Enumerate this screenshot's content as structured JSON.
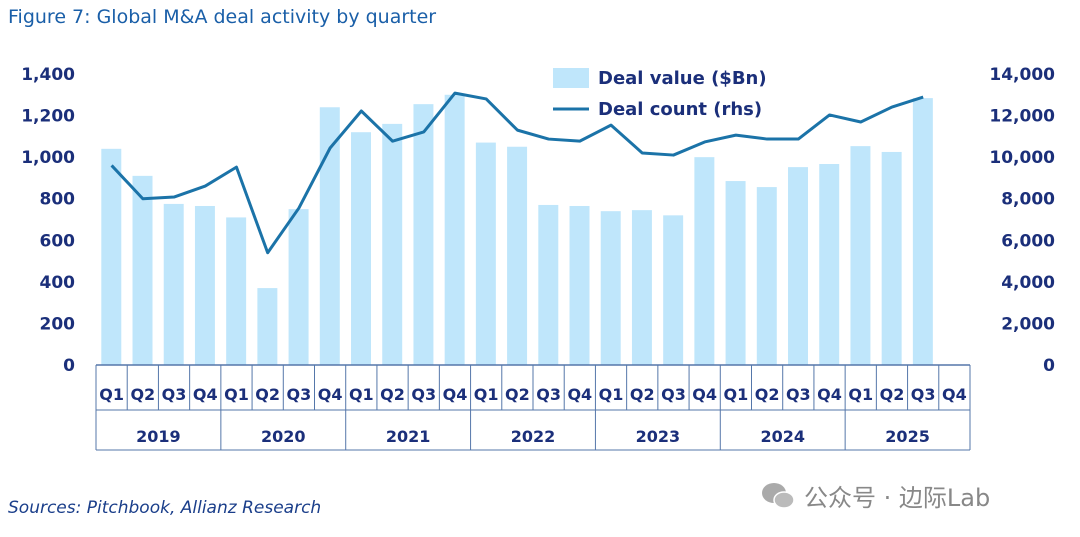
{
  "chart_data": {
    "type": "bar+line",
    "title": "Figure 7: Global M&A deal activity by quarter",
    "source": "Sources: Pitchbook, Allianz Research",
    "categories": [
      "Q1",
      "Q2",
      "Q3",
      "Q4",
      "Q1",
      "Q2",
      "Q3",
      "Q4",
      "Q1",
      "Q2",
      "Q3",
      "Q4",
      "Q1",
      "Q2",
      "Q3",
      "Q4",
      "Q1",
      "Q2",
      "Q3",
      "Q4",
      "Q1",
      "Q2",
      "Q3",
      "Q4",
      "Q1",
      "Q2",
      "Q3",
      "Q4"
    ],
    "years": [
      "2019",
      "2020",
      "2021",
      "2022",
      "2023",
      "2024",
      "2025"
    ],
    "series": [
      {
        "name": "Deal value ($Bn)",
        "type": "bar",
        "axis": "left",
        "color": "#bfe6fb",
        "values": [
          1040,
          910,
          775,
          765,
          710,
          370,
          750,
          1240,
          1120,
          1160,
          1255,
          1300,
          1070,
          1050,
          770,
          765,
          740,
          745,
          720,
          1000,
          885,
          856,
          952,
          967,
          1053,
          1025,
          1284,
          null
        ]
      },
      {
        "name": "Deal count (rhs)",
        "type": "line",
        "axis": "right",
        "color": "#1b73a8",
        "values": [
          9600,
          8000,
          8080,
          8610,
          9520,
          5400,
          7550,
          10440,
          12220,
          10770,
          11210,
          13080,
          12800,
          11300,
          10870,
          10770,
          11540,
          10200,
          10100,
          10730,
          11060,
          10870,
          10870,
          12030,
          11690,
          12410,
          12890,
          null
        ]
      }
    ],
    "yleft": {
      "range": [
        0,
        1400
      ],
      "ticks": [
        "0",
        "200",
        "400",
        "600",
        "800",
        "1,000",
        "1,200",
        "1,400"
      ]
    },
    "yright": {
      "range": [
        0,
        14000
      ],
      "ticks": [
        "0",
        "2,000",
        "4,000",
        "6,000",
        "8,000",
        "10,000",
        "12,000",
        "14,000"
      ]
    },
    "legend": "top-center",
    "grid": false
  },
  "watermark": {
    "text": "公众号 · 边际Lab",
    "icon": "wechat-icon"
  }
}
